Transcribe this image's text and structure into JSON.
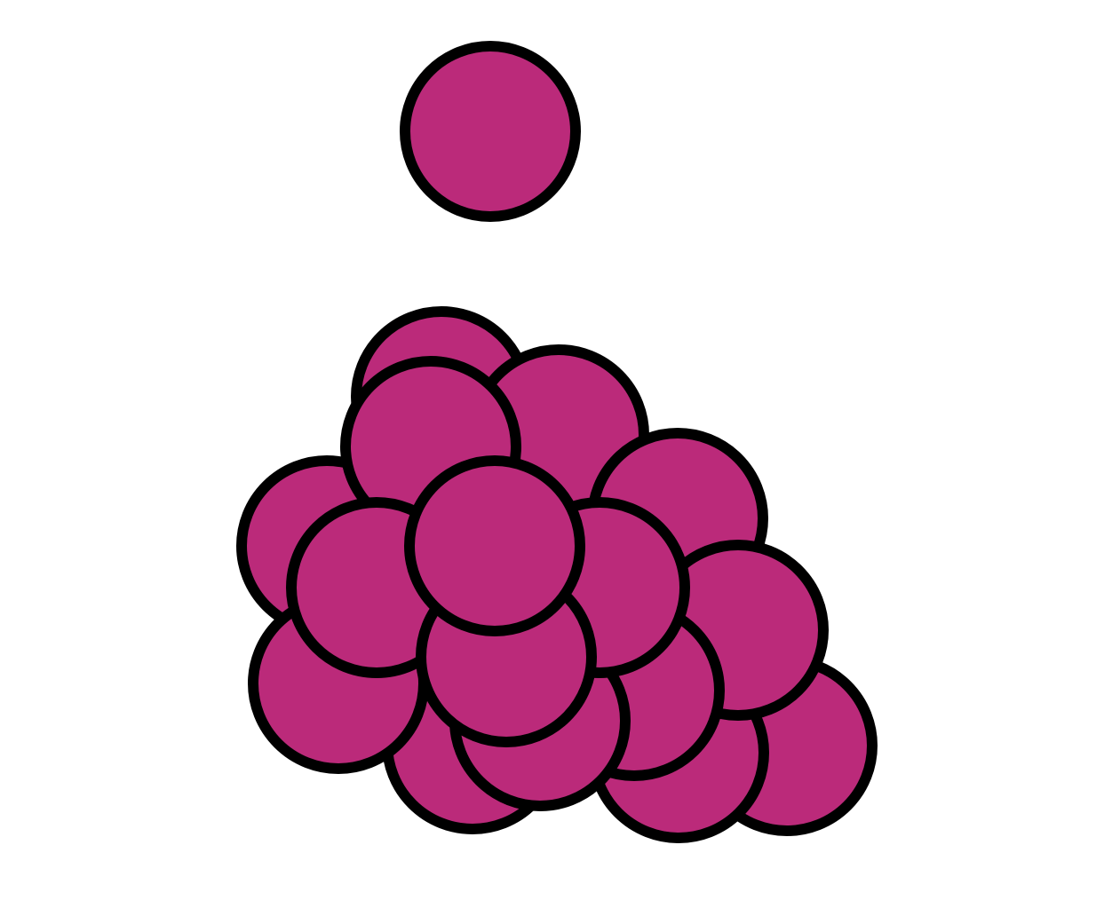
{
  "colors": {
    "background": "#ffffff",
    "ball_fill": "#bb2a7a",
    "ball_stroke": "#000000"
  },
  "groups": {
    "single_ball_count": 1,
    "cluster_ball_count": 19
  }
}
